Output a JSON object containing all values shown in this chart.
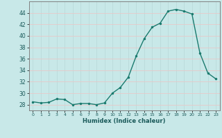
{
  "x": [
    0,
    1,
    2,
    3,
    4,
    5,
    6,
    7,
    8,
    9,
    10,
    11,
    12,
    13,
    14,
    15,
    16,
    17,
    18,
    19,
    20,
    21,
    22,
    23
  ],
  "y": [
    28.5,
    28.3,
    28.4,
    29.0,
    28.9,
    28.0,
    28.2,
    28.2,
    28.0,
    28.3,
    30.0,
    31.0,
    32.8,
    36.5,
    39.5,
    41.5,
    42.2,
    44.3,
    44.6,
    44.3,
    43.8,
    37.0,
    33.5,
    32.5
  ],
  "line_color": "#1a7a6e",
  "marker_size": 2.5,
  "bg_color": "#c8e8e8",
  "grid_color_y": "#e8c8c8",
  "grid_color_x": "#b8d8d8",
  "xlabel": "Humidex (Indice chaleur)",
  "xlim": [
    -0.5,
    23.5
  ],
  "ylim": [
    27,
    46
  ],
  "yticks": [
    28,
    30,
    32,
    34,
    36,
    38,
    40,
    42,
    44
  ],
  "xticks": [
    0,
    1,
    2,
    3,
    4,
    5,
    6,
    7,
    8,
    9,
    10,
    11,
    12,
    13,
    14,
    15,
    16,
    17,
    18,
    19,
    20,
    21,
    22,
    23
  ]
}
